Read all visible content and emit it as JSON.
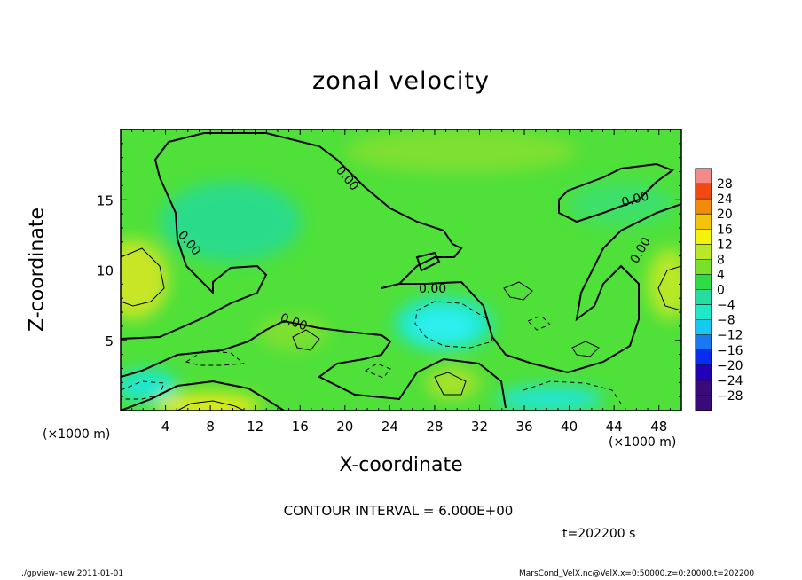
{
  "chart_data": {
    "type": "heatmap",
    "title": "zonal velocity",
    "xlabel": "X-coordinate",
    "ylabel": "Z-coordinate",
    "x_unit_label": "(×1000 m)",
    "xlim": [
      0,
      50
    ],
    "ylim": [
      0,
      20
    ],
    "x_ticks": [
      "4",
      "8",
      "12",
      "16",
      "20",
      "24",
      "28",
      "32",
      "36",
      "40",
      "44",
      "48"
    ],
    "x_tick_values": [
      4,
      8,
      12,
      16,
      20,
      24,
      28,
      32,
      36,
      40,
      44,
      48
    ],
    "y_ticks": [
      "5",
      "10",
      "15"
    ],
    "y_tick_values": [
      5,
      10,
      15
    ],
    "colorbar": {
      "levels": [
        -28,
        -24,
        -20,
        -16,
        -12,
        -8,
        -4,
        0,
        4,
        8,
        12,
        16,
        20,
        24,
        28
      ],
      "labels": [
        "28",
        "24",
        "20",
        "16",
        "12",
        "8",
        "4",
        "0",
        "−4",
        "−8",
        "−12",
        "−16",
        "−20",
        "−24",
        "−28"
      ],
      "colors": [
        "#3b0a7a",
        "#2200b8",
        "#0a2cf0",
        "#1a78f2",
        "#17c8f0",
        "#1ee8c6",
        "#28dca0",
        "#2edc46",
        "#7ae02a",
        "#b8e828",
        "#f2f20a",
        "#f2c40a",
        "#f28a0a",
        "#ef4a12",
        "#f28a8a"
      ]
    },
    "contour_interval_label": "CONTOUR INTERVAL = 6.000E+00",
    "contour_labels": [
      "0.00",
      "0.00",
      "0.00",
      "0.00",
      "0.00",
      "0.00",
      "0.00"
    ],
    "features": [
      {
        "x": 29,
        "y": 7.5,
        "value": -9,
        "desc": "negative core"
      },
      {
        "x": 1,
        "y": 10,
        "value": 7
      },
      {
        "x": 9,
        "y": 0.5,
        "value": 12
      },
      {
        "x": 49,
        "y": 9,
        "value": 7
      },
      {
        "x": 1,
        "y": 2,
        "value": -9
      },
      {
        "x": 37,
        "y": 1,
        "value": -9
      },
      {
        "x": 9,
        "y": 15,
        "value": -5
      },
      {
        "x": 29,
        "y": 2,
        "value": 5
      }
    ]
  },
  "time_label": "t=202200 s",
  "footer": {
    "left": "./gpview-new   2011-01-01",
    "right": "MarsCond_VelX.nc@VelX,x=0:50000,z=0:20000,t=202200"
  }
}
